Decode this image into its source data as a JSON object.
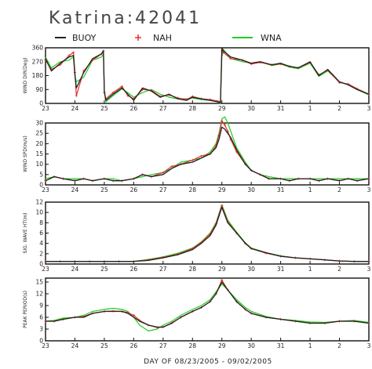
{
  "title": "Katrina:42041",
  "legend": [
    {
      "label": "BUOY",
      "color": "#222222",
      "marker": "dash"
    },
    {
      "label": "NAH",
      "color": "#e03030",
      "marker": "plus"
    },
    {
      "label": "WNA",
      "color": "#22cc22",
      "marker": "line"
    }
  ],
  "xlabel": "DAY OF 08/23/2005 - 09/02/2005",
  "xticks": [
    {
      "t": 0,
      "label": "23"
    },
    {
      "t": 1,
      "label": "24"
    },
    {
      "t": 2,
      "label": "25"
    },
    {
      "t": 3,
      "label": "26"
    },
    {
      "t": 4,
      "label": "27"
    },
    {
      "t": 5,
      "label": "28"
    },
    {
      "t": 6,
      "label": "29"
    },
    {
      "t": 7,
      "label": "30"
    },
    {
      "t": 8,
      "label": "31"
    },
    {
      "t": 9,
      "label": "1"
    },
    {
      "t": 10,
      "label": "2"
    },
    {
      "t": 11,
      "label": "3"
    }
  ],
  "chart_data": [
    {
      "type": "line",
      "ylabel": "WIND DIR(Deg)",
      "ylim": [
        0,
        360
      ],
      "yticks": [
        0,
        90,
        180,
        270,
        360
      ],
      "series": [
        {
          "name": "BUOY",
          "x": [
            0,
            0.2,
            0.5,
            0.8,
            0.95,
            1.0,
            1.05,
            1.3,
            1.6,
            1.9,
            1.97,
            2.0,
            2.05,
            2.3,
            2.6,
            2.8,
            3.0,
            3.3,
            3.6,
            3.9,
            4.2,
            4.5,
            4.8,
            5.0,
            5.3,
            5.6,
            5.85,
            5.95,
            6.0,
            6.05,
            6.3,
            6.7,
            7.0,
            7.3,
            7.7,
            8.0,
            8.3,
            8.6,
            9.0,
            9.3,
            9.6,
            10.0,
            10.3,
            10.6,
            11.0
          ],
          "y": [
            290,
            210,
            260,
            300,
            310,
            180,
            100,
            200,
            290,
            320,
            340,
            80,
            20,
            60,
            100,
            60,
            20,
            100,
            80,
            40,
            60,
            30,
            20,
            40,
            30,
            20,
            10,
            5,
            360,
            340,
            300,
            280,
            260,
            270,
            250,
            260,
            240,
            230,
            270,
            180,
            220,
            140,
            120,
            90,
            60
          ]
        },
        {
          "name": "NAH",
          "x": [
            0,
            0.2,
            0.5,
            0.8,
            0.95,
            1.0,
            1.05,
            1.3,
            1.6,
            1.9,
            1.97,
            2.0,
            2.05,
            2.3,
            2.6,
            2.8,
            3.0,
            3.3,
            3.6,
            3.9,
            4.2,
            4.5,
            4.8,
            5.0,
            5.3,
            5.6,
            5.85,
            5.95,
            6.0,
            6.05,
            6.3,
            6.7,
            7.0,
            7.3,
            7.7,
            8.0,
            8.3,
            8.6,
            9.0,
            9.3,
            9.6,
            10.0,
            10.3,
            10.6,
            11.0
          ],
          "y": [
            280,
            220,
            250,
            310,
            330,
            200,
            50,
            210,
            280,
            320,
            340,
            70,
            30,
            70,
            110,
            50,
            30,
            90,
            85,
            45,
            55,
            35,
            25,
            45,
            30,
            25,
            15,
            10,
            340,
            330,
            290,
            280,
            255,
            265,
            250,
            255,
            240,
            230,
            265,
            185,
            215,
            135,
            125,
            95,
            60
          ]
        },
        {
          "name": "WNA",
          "x": [
            0,
            0.2,
            0.5,
            0.8,
            0.95,
            1.0,
            1.05,
            1.3,
            1.6,
            1.9,
            1.97,
            2.0,
            2.05,
            2.3,
            2.6,
            2.8,
            3.0,
            3.3,
            3.6,
            3.9,
            4.2,
            4.5,
            4.8,
            5.0,
            5.3,
            5.6,
            5.85,
            5.95,
            6.0,
            6.05,
            6.3,
            6.7,
            7.0,
            7.3,
            7.7,
            8.0,
            8.3,
            8.6,
            9.0,
            9.3,
            9.6,
            10.0,
            10.3,
            10.6,
            11.0
          ],
          "y": [
            300,
            230,
            270,
            280,
            300,
            180,
            140,
            170,
            280,
            300,
            320,
            90,
            10,
            50,
            95,
            70,
            40,
            70,
            90,
            60,
            40,
            30,
            30,
            35,
            25,
            20,
            15,
            0,
            300,
            350,
            290,
            270,
            260,
            270,
            245,
            255,
            235,
            225,
            260,
            175,
            210,
            140,
            120,
            90,
            55
          ]
        }
      ]
    },
    {
      "type": "line",
      "ylabel": "WIND SPD(m/s)",
      "ylim": [
        0,
        30
      ],
      "yticks": [
        0,
        5,
        10,
        15,
        20,
        25,
        30
      ],
      "series": [
        {
          "name": "BUOY",
          "x": [
            0,
            0.3,
            0.6,
            1.0,
            1.3,
            1.6,
            2.0,
            2.3,
            2.6,
            3.0,
            3.3,
            3.6,
            4.0,
            4.3,
            4.6,
            5.0,
            5.3,
            5.6,
            5.8,
            5.9,
            6.0,
            6.1,
            6.2,
            6.3,
            6.5,
            6.8,
            7.0,
            7.3,
            7.6,
            8.0,
            8.3,
            8.6,
            9.0,
            9.3,
            9.6,
            10.0,
            10.3,
            10.6,
            11.0
          ],
          "y": [
            2,
            4,
            3,
            2,
            3,
            2,
            3,
            2,
            2,
            3,
            5,
            4,
            5,
            8,
            10,
            11,
            13,
            15,
            18,
            22,
            28,
            27,
            25,
            23,
            17,
            10,
            7,
            5,
            3,
            3,
            2,
            3,
            3,
            2,
            3,
            2,
            3,
            2,
            3
          ]
        },
        {
          "name": "NAH",
          "x": [
            0,
            0.3,
            0.6,
            1.0,
            1.3,
            1.6,
            2.0,
            2.3,
            2.6,
            3.0,
            3.3,
            3.6,
            4.0,
            4.3,
            4.6,
            5.0,
            5.3,
            5.6,
            5.8,
            5.9,
            6.0,
            6.1,
            6.2,
            6.3,
            6.5,
            6.8,
            7.0,
            7.3,
            7.6,
            8.0,
            8.3,
            8.6,
            9.0,
            9.3,
            9.6,
            10.0,
            10.3,
            10.6,
            11.0
          ],
          "y": [
            2,
            4,
            3,
            2,
            3,
            2,
            3,
            2,
            2,
            3,
            5,
            4,
            6,
            9,
            10,
            12,
            14,
            15,
            19,
            24,
            31,
            29,
            26,
            22,
            16,
            10,
            7,
            5,
            3,
            3,
            2,
            3,
            3,
            2,
            3,
            2,
            3,
            2,
            3
          ]
        },
        {
          "name": "WNA",
          "x": [
            0,
            0.3,
            0.6,
            1.0,
            1.3,
            1.6,
            2.0,
            2.3,
            2.6,
            3.0,
            3.3,
            3.6,
            4.0,
            4.3,
            4.6,
            5.0,
            5.3,
            5.6,
            5.8,
            5.9,
            6.0,
            6.1,
            6.2,
            6.3,
            6.5,
            6.8,
            7.0,
            7.3,
            7.6,
            8.0,
            8.3,
            8.6,
            9.0,
            9.3,
            9.6,
            10.0,
            10.3,
            10.6,
            11.0
          ],
          "y": [
            3,
            4,
            3,
            3,
            3,
            2,
            3,
            3,
            2,
            3,
            4,
            5,
            6,
            8,
            11,
            12,
            13,
            16,
            20,
            25,
            32,
            33,
            30,
            26,
            18,
            11,
            7,
            5,
            4,
            3,
            3,
            3,
            3,
            3,
            3,
            3,
            3,
            3,
            3
          ]
        }
      ]
    },
    {
      "type": "line",
      "ylabel": "SIG. WAVE HT(m)",
      "ylim": [
        0,
        12
      ],
      "yticks": [
        0,
        2,
        4,
        6,
        8,
        10,
        12
      ],
      "series": [
        {
          "name": "BUOY",
          "x": [
            0,
            0.5,
            1.0,
            1.5,
            2.0,
            2.5,
            3.0,
            3.5,
            4.0,
            4.5,
            5.0,
            5.3,
            5.6,
            5.8,
            6.0,
            6.2,
            6.5,
            6.8,
            7.0,
            7.5,
            8.0,
            8.5,
            9.0,
            9.5,
            10.0,
            10.5,
            11.0
          ],
          "y": [
            0.5,
            0.5,
            0.5,
            0.5,
            0.5,
            0.5,
            0.5,
            0.7,
            1.2,
            1.8,
            2.8,
            4,
            5.5,
            7.5,
            11,
            8,
            6,
            4,
            3,
            2.2,
            1.5,
            1.2,
            1,
            0.8,
            0.6,
            0.5,
            0.5
          ]
        },
        {
          "name": "NAH",
          "x": [
            0,
            0.5,
            1.0,
            1.5,
            2.0,
            2.5,
            3.0,
            3.5,
            4.0,
            4.5,
            5.0,
            5.3,
            5.6,
            5.8,
            6.0,
            6.2,
            6.5,
            6.8,
            7.0,
            7.5,
            8.0,
            8.5,
            9.0,
            9.5,
            10.0,
            10.5,
            11.0
          ],
          "y": [
            0.5,
            0.5,
            0.5,
            0.5,
            0.5,
            0.5,
            0.5,
            0.8,
            1.3,
            1.9,
            3,
            4.2,
            5.8,
            7.8,
            11.3,
            8.2,
            6,
            4,
            3,
            2.1,
            1.5,
            1.2,
            1,
            0.8,
            0.6,
            0.5,
            0.5
          ]
        },
        {
          "name": "WNA",
          "x": [
            0,
            0.5,
            1.0,
            1.5,
            2.0,
            2.5,
            3.0,
            3.5,
            4.0,
            4.5,
            5.0,
            5.3,
            5.6,
            5.8,
            6.0,
            6.2,
            6.5,
            6.8,
            7.0,
            7.5,
            8.0,
            8.5,
            9.0,
            9.5,
            10.0,
            10.5,
            11.0
          ],
          "y": [
            0.5,
            0.5,
            0.5,
            0.5,
            0.5,
            0.5,
            0.5,
            0.9,
            1.4,
            2.1,
            3.1,
            4.3,
            6,
            8,
            11.5,
            8.5,
            6.2,
            4.1,
            3.1,
            2.2,
            1.6,
            1.2,
            1,
            0.8,
            0.6,
            0.5,
            0.5
          ]
        }
      ]
    },
    {
      "type": "line",
      "ylabel": "PEAK PERIOD(s)",
      "ylim": [
        0,
        16
      ],
      "yticks": [
        0,
        3,
        6,
        9,
        12,
        15
      ],
      "series": [
        {
          "name": "BUOY",
          "x": [
            0,
            0.3,
            0.6,
            1.0,
            1.3,
            1.6,
            2.0,
            2.3,
            2.6,
            2.8,
            3.0,
            3.2,
            3.5,
            3.8,
            4.0,
            4.3,
            4.6,
            5.0,
            5.3,
            5.6,
            5.8,
            6.0,
            6.2,
            6.5,
            6.8,
            7.0,
            7.5,
            8.0,
            8.5,
            9.0,
            9.5,
            10.0,
            10.5,
            11.0
          ],
          "y": [
            5,
            5,
            5.5,
            6,
            6,
            7,
            7.5,
            7.5,
            7.5,
            7,
            6,
            5,
            4,
            3.5,
            3.5,
            4.5,
            6,
            7.5,
            8.5,
            10,
            12,
            15,
            13,
            10,
            8,
            7,
            6,
            5.5,
            5,
            4.5,
            4.5,
            5,
            5,
            4.5
          ]
        },
        {
          "name": "NAH",
          "x": [
            0,
            0.3,
            0.6,
            1.0,
            1.3,
            1.6,
            2.0,
            2.3,
            2.6,
            2.8,
            3.0,
            3.2,
            3.5,
            3.8,
            4.0,
            4.3,
            4.6,
            5.0,
            5.3,
            5.6,
            5.8,
            6.0,
            6.2,
            6.5,
            6.8,
            7.0,
            7.5,
            8.0,
            8.5,
            9.0,
            9.5,
            10.0,
            10.5,
            11.0
          ],
          "y": [
            5,
            5,
            5.5,
            6,
            6.2,
            7,
            7.5,
            7.6,
            7.5,
            7.2,
            6.5,
            5.2,
            4,
            3.4,
            3.5,
            4.6,
            6,
            7.5,
            8.5,
            10,
            12,
            15.5,
            13,
            10,
            8,
            7,
            6,
            5.5,
            5,
            4.5,
            4.5,
            5,
            5,
            4.5
          ]
        },
        {
          "name": "WNA",
          "x": [
            0,
            0.3,
            0.6,
            1.0,
            1.3,
            1.6,
            2.0,
            2.3,
            2.6,
            2.8,
            3.0,
            3.2,
            3.5,
            3.8,
            4.0,
            4.3,
            4.6,
            5.0,
            5.3,
            5.6,
            5.8,
            6.0,
            6.2,
            6.5,
            6.8,
            7.0,
            7.5,
            8.0,
            8.5,
            9.0,
            9.5,
            10.0,
            10.5,
            11.0
          ],
          "y": [
            5,
            5.2,
            5.8,
            6,
            6.5,
            7.5,
            8,
            8.3,
            8,
            7.5,
            6,
            4,
            2.5,
            3,
            4,
            5,
            6.5,
            8,
            9,
            10.5,
            12.5,
            14.5,
            13,
            10.5,
            8.5,
            7.5,
            6.2,
            5.5,
            5.2,
            4.8,
            4.7,
            5,
            5.2,
            4.7
          ]
        }
      ]
    }
  ]
}
